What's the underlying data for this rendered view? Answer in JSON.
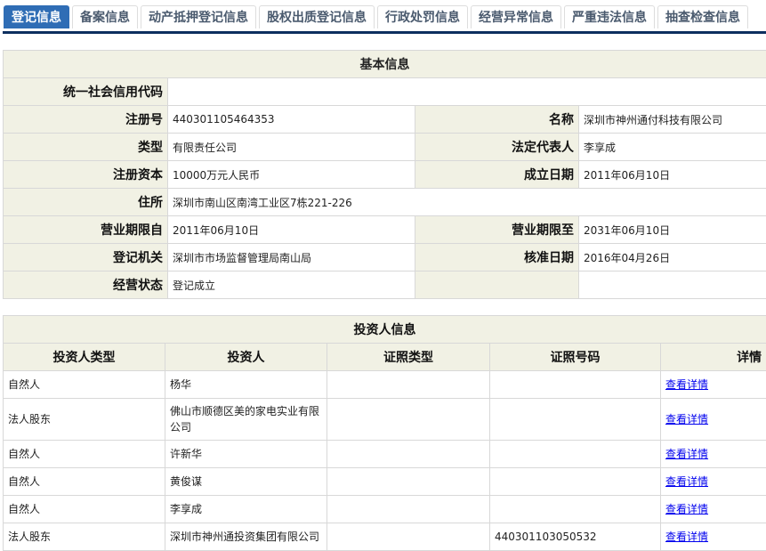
{
  "tabs": [
    "登记信息",
    "备案信息",
    "动产抵押登记信息",
    "股权出质登记信息",
    "行政处罚信息",
    "经营异常信息",
    "严重违法信息",
    "抽查检查信息"
  ],
  "active_tab": "登记信息",
  "colors": {
    "active_tab": "#2f6db5",
    "underline": "#0d2f5f",
    "label_bg": "#f1f1e4",
    "link": "#0000ee"
  },
  "basic": {
    "title": "基本信息",
    "credit_code_label": "统一社会信用代码",
    "credit_code": "",
    "reg_no_label": "注册号",
    "reg_no": "440301105464353",
    "name_label": "名称",
    "name": "深圳市神州通付科技有限公司",
    "type_label": "类型",
    "type": "有限责任公司",
    "legal_rep_label": "法定代表人",
    "legal_rep": "李享成",
    "capital_label": "注册资本",
    "capital": "10000万元人民币",
    "est_date_label": "成立日期",
    "est_date": "2011年06月10日",
    "address_label": "住所",
    "address": "深圳市南山区南湾工业区7栋221-226",
    "term_from_label": "营业期限自",
    "term_from": "2011年06月10日",
    "term_to_label": "营业期限至",
    "term_to": "2031年06月10日",
    "authority_label": "登记机关",
    "authority": "深圳市市场监督管理局南山局",
    "approve_date_label": "核准日期",
    "approve_date": "2016年04月26日",
    "status_label": "经营状态",
    "status": "登记成立"
  },
  "investors": {
    "title": "投资人信息",
    "columns": [
      "投资人类型",
      "投资人",
      "证照类型",
      "证照号码",
      "详情"
    ],
    "rows": [
      {
        "type": "自然人",
        "name": "杨华",
        "id_type": "",
        "id_no": "",
        "detail": "查看详情"
      },
      {
        "type": "法人股东",
        "name": "佛山市顺德区美的家电实业有限公司",
        "id_type": "",
        "id_no": "",
        "detail": "查看详情"
      },
      {
        "type": "自然人",
        "name": "许新华",
        "id_type": "",
        "id_no": "",
        "detail": "查看详情"
      },
      {
        "type": "自然人",
        "name": "黄俊谋",
        "id_type": "",
        "id_no": "",
        "detail": "查看详情"
      },
      {
        "type": "自然人",
        "name": "李享成",
        "id_type": "",
        "id_no": "",
        "detail": "查看详情"
      },
      {
        "type": "法人股东",
        "name": "深圳市神州通投资集团有限公司",
        "id_type": "",
        "id_no": "440301103050532",
        "detail": "查看详情"
      }
    ]
  }
}
